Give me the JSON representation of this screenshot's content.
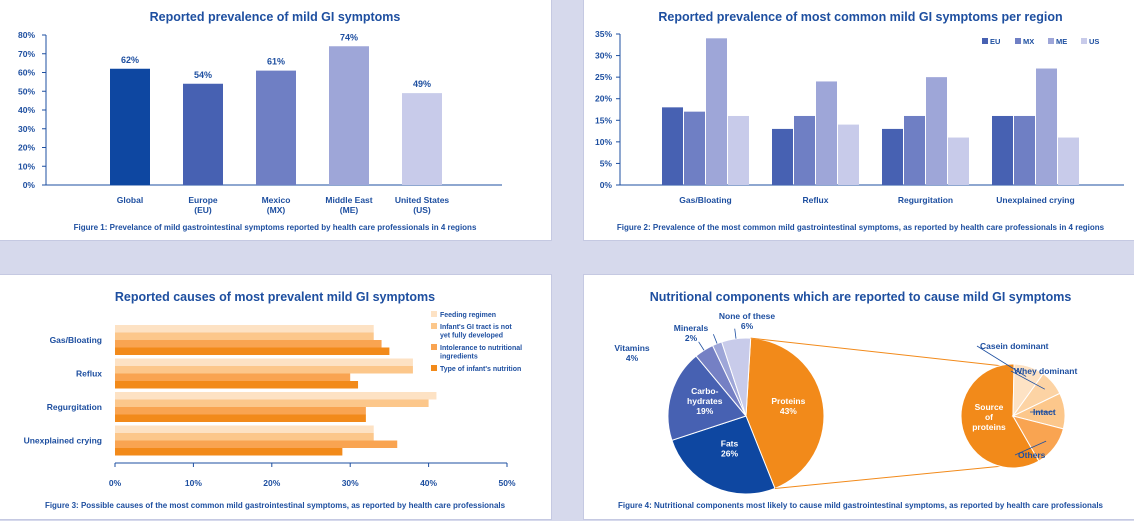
{
  "colors": {
    "background": "#d6d9ec",
    "text": "#1e4fa0",
    "region": [
      "#0e47a1",
      "#4761b2",
      "#6f7fc4",
      "#9ea6d8",
      "#c8cbea"
    ],
    "causes": [
      "#fde2c4",
      "#fcc78b",
      "#f9a451",
      "#f28a1a"
    ],
    "pie": [
      "#f28a1a",
      "#0e47a1",
      "#4761b2",
      "#7580c4",
      "#9ea6d8",
      "#c8cbea"
    ],
    "subpie": [
      "#fde2c4",
      "#fcd3a4",
      "#fcc78b",
      "#f9a451",
      "#f28a1a"
    ]
  },
  "panels": {
    "p1": {
      "title": "Reported prevalence of mild GI symptoms",
      "caption": "Figure 1: Prevelance of mild gastrointestinal symptoms reported by health care professionals in 4 regions"
    },
    "p2": {
      "title": "Reported prevalence of most common mild GI symptoms per region",
      "caption": "Figure 2: Prevalence of the most common mild gastrointestinal symptoms, as reported by health care professionals in 4 regions"
    },
    "p3": {
      "title": "Reported causes of most prevalent mild GI symptoms",
      "caption": "Figure 3: Possible causes of the most common mild gastrointestinal symptoms, as reported by health care professionals"
    },
    "p4": {
      "title": "Nutritional components which are reported to cause mild GI symptoms",
      "caption": "Figure 4: Nutritional components most likely to cause mild gastrointestinal symptoms, as reported by health care professionals"
    }
  },
  "chart_data": [
    {
      "type": "bar",
      "title": "Reported prevalence of mild GI symptoms",
      "categories": [
        [
          "Global"
        ],
        [
          "Europe",
          "(EU)"
        ],
        [
          "Mexico",
          "(MX)"
        ],
        [
          "Middle East",
          "(ME)"
        ],
        [
          "United States",
          "(US)"
        ]
      ],
      "values": [
        62,
        54,
        61,
        74,
        49
      ],
      "value_labels": [
        "62%",
        "54%",
        "61%",
        "74%",
        "49%"
      ],
      "ylim": [
        0,
        80
      ],
      "yticks": [
        "0%",
        "10%",
        "20%",
        "30%",
        "40%",
        "50%",
        "60%",
        "70%",
        "80%"
      ]
    },
    {
      "type": "bar",
      "title": "Reported prevalence of most common mild GI symptoms per region",
      "categories": [
        "Gas/Bloating",
        "Reflux",
        "Regurgitation",
        "Unexplained crying"
      ],
      "series": [
        {
          "name": "EU",
          "values": [
            18,
            13,
            13,
            16
          ]
        },
        {
          "name": "MX",
          "values": [
            17,
            16,
            16,
            16
          ]
        },
        {
          "name": "ME",
          "values": [
            34,
            24,
            25,
            27
          ]
        },
        {
          "name": "US",
          "values": [
            16,
            14,
            11,
            11
          ]
        }
      ],
      "ylim": [
        0,
        35
      ],
      "yticks": [
        "0%",
        "5%",
        "10%",
        "15%",
        "20%",
        "25%",
        "30%",
        "35%"
      ],
      "legend": "top-right"
    },
    {
      "type": "bar",
      "orientation": "horizontal",
      "title": "Reported causes of most prevalent mild GI symptoms",
      "categories": [
        "Gas/Bloating",
        "Reflux",
        "Regurgitation",
        "Unexplained crying"
      ],
      "series": [
        {
          "name": [
            "Feeding regimen"
          ],
          "values": [
            33,
            38,
            41,
            33
          ]
        },
        {
          "name": [
            "Infant's GI tract is not",
            "yet fully developed"
          ],
          "values": [
            33,
            38,
            40,
            33
          ]
        },
        {
          "name": [
            "Intolerance to nutritional",
            "ingredients"
          ],
          "values": [
            34,
            30,
            32,
            36
          ]
        },
        {
          "name": [
            "Type of infant's nutrition"
          ],
          "values": [
            35,
            31,
            32,
            29
          ]
        }
      ],
      "xlim": [
        0,
        50
      ],
      "xticks": [
        "0%",
        "10%",
        "20%",
        "30%",
        "40%",
        "50%"
      ],
      "legend": "right"
    },
    {
      "type": "pie",
      "title": "Nutritional components which are reported to cause mild GI symptoms",
      "slices": [
        {
          "label": [
            "Proteins",
            "43%"
          ],
          "value": 43
        },
        {
          "label": [
            "Fats",
            "26%"
          ],
          "value": 26
        },
        {
          "label": [
            "Carbo-",
            "hydrates",
            "19%"
          ],
          "value": 19
        },
        {
          "label": [
            "Vitamins",
            "4%"
          ],
          "value": 4
        },
        {
          "label": [
            "Minerals",
            "2%"
          ],
          "value": 2
        },
        {
          "label": [
            "None of these",
            "6%"
          ],
          "value": 6
        }
      ],
      "breakdown": {
        "of": "Proteins",
        "center_label": [
          "Source",
          "of",
          "proteins"
        ],
        "slices": [
          "Casein dominant",
          "Whey dominant",
          "Intact",
          "Others"
        ]
      }
    }
  ]
}
